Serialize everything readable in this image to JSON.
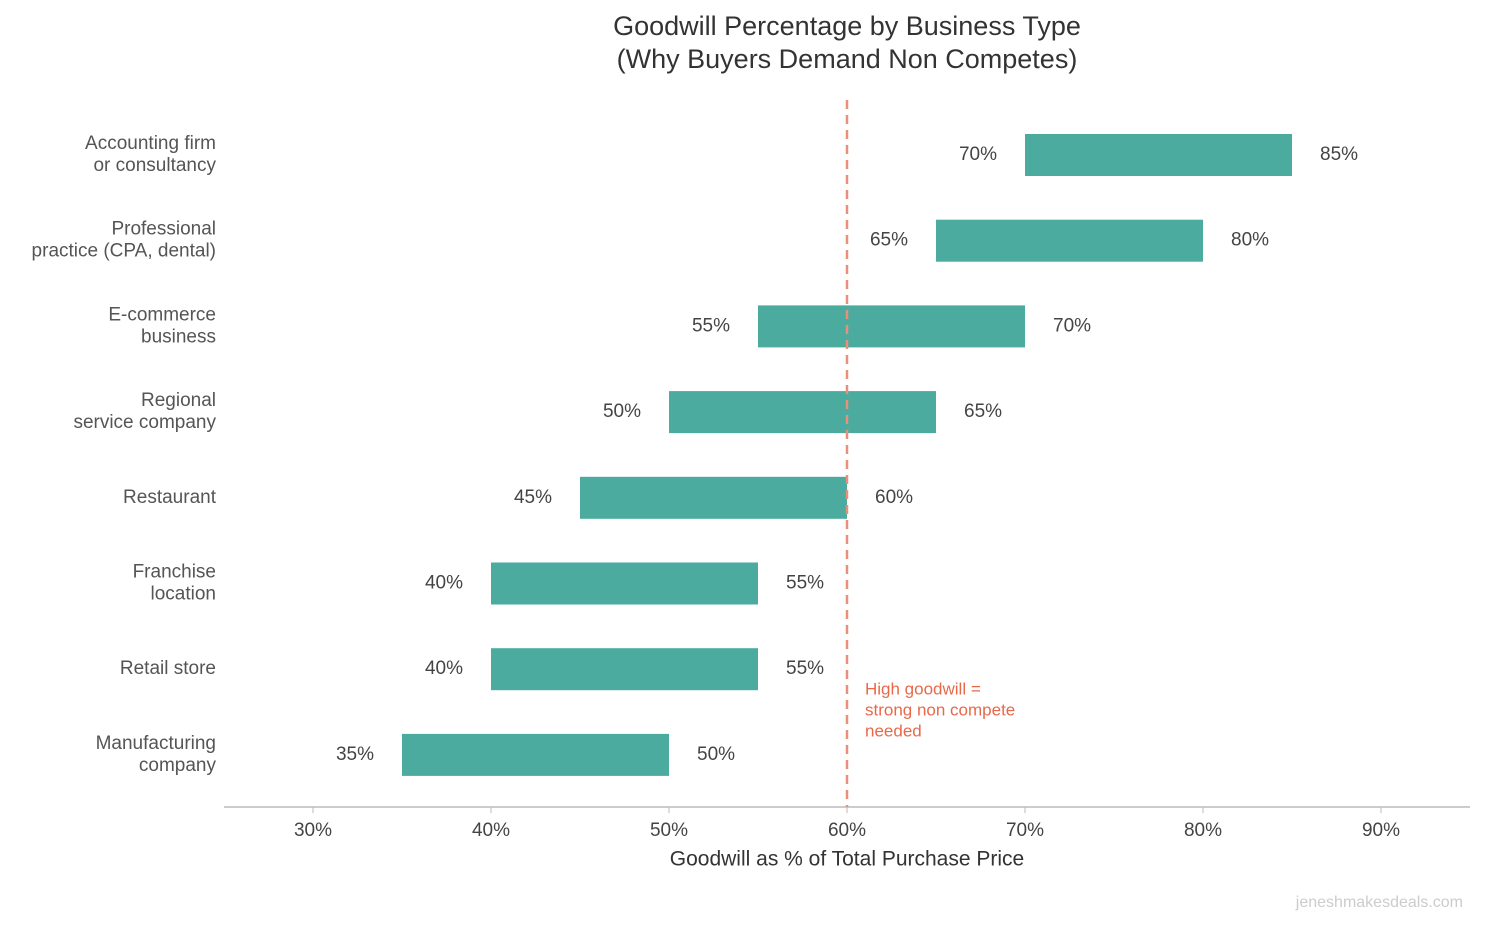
{
  "chart_data": {
    "type": "range-bar",
    "title": [
      "Goodwill Percentage by Business Type",
      "(Why Buyers Demand Non Competes)"
    ],
    "x_label": "Goodwill as % of Total Purchase Price",
    "categories": [
      [
        "Accounting firm",
        "or consultancy"
      ],
      [
        "Professional",
        "practice (CPA, dental)"
      ],
      [
        "E-commerce",
        "business"
      ],
      [
        "Regional",
        "service company"
      ],
      [
        "Restaurant"
      ],
      [
        "Franchise",
        "location"
      ],
      [
        "Retail store"
      ],
      [
        "Manufacturing",
        "company"
      ]
    ],
    "low": {
      "values": [
        70,
        65,
        55,
        50,
        45,
        40,
        40,
        35
      ],
      "value_labels": [
        "70%",
        "65%",
        "55%",
        "50%",
        "45%",
        "40%",
        "40%",
        "35%"
      ]
    },
    "high": {
      "values": [
        85,
        80,
        70,
        65,
        60,
        55,
        55,
        50
      ],
      "value_labels": [
        "85%",
        "80%",
        "70%",
        "65%",
        "60%",
        "55%",
        "55%",
        "50%"
      ]
    },
    "color": "#4bab9f",
    "xlim": [
      25,
      95
    ],
    "xticks": [
      {
        "value": 30,
        "label": "30%"
      },
      {
        "value": 40,
        "label": "40%"
      },
      {
        "value": 50,
        "label": "50%"
      },
      {
        "value": 60,
        "label": "60%"
      },
      {
        "value": 70,
        "label": "70%"
      },
      {
        "value": 80,
        "label": "80%"
      },
      {
        "value": 90,
        "label": "90%"
      }
    ],
    "reference": {
      "value": 60,
      "color": "#e8907a",
      "annotation": [
        "High goodwill =",
        "strong non compete",
        "needed"
      ],
      "annotation_color": "#e8694a"
    },
    "watermark": "jeneshmakesdeals.com"
  }
}
